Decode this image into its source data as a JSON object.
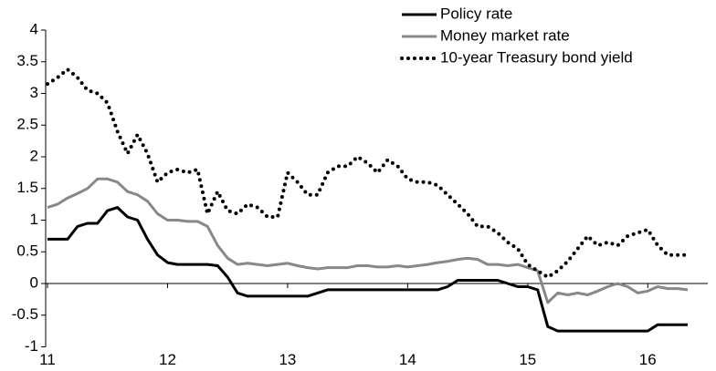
{
  "chart_data": {
    "type": "line",
    "x": [
      11,
      11.083,
      11.167,
      11.25,
      11.333,
      11.417,
      11.5,
      11.583,
      11.667,
      11.75,
      11.833,
      11.917,
      12,
      12.083,
      12.167,
      12.25,
      12.333,
      12.417,
      12.5,
      12.583,
      12.667,
      12.75,
      12.833,
      12.917,
      13,
      13.083,
      13.167,
      13.25,
      13.333,
      13.417,
      13.5,
      13.583,
      13.667,
      13.75,
      13.833,
      13.917,
      14,
      14.083,
      14.167,
      14.25,
      14.333,
      14.417,
      14.5,
      14.583,
      14.667,
      14.75,
      14.833,
      14.917,
      15,
      15.083,
      15.167,
      15.25,
      15.333,
      15.417,
      15.5,
      15.583,
      15.667,
      15.75,
      15.833,
      15.917,
      16,
      16.083,
      16.167,
      16.25,
      16.333
    ],
    "series": [
      {
        "name": "Policy rate",
        "color": "#000000",
        "linestyle": "solid",
        "values": [
          0.7,
          0.7,
          0.7,
          0.9,
          0.95,
          0.95,
          1.15,
          1.2,
          1.05,
          1.0,
          0.7,
          0.45,
          0.33,
          0.3,
          0.3,
          0.3,
          0.3,
          0.28,
          0.1,
          -0.15,
          -0.2,
          -0.2,
          -0.2,
          -0.2,
          -0.2,
          -0.2,
          -0.2,
          -0.15,
          -0.1,
          -0.1,
          -0.1,
          -0.1,
          -0.1,
          -0.1,
          -0.1,
          -0.1,
          -0.1,
          -0.1,
          -0.1,
          -0.1,
          -0.05,
          0.05,
          0.05,
          0.05,
          0.05,
          0.05,
          0,
          -0.05,
          -0.05,
          -0.1,
          -0.68,
          -0.75,
          -0.75,
          -0.75,
          -0.75,
          -0.75,
          -0.75,
          -0.75,
          -0.75,
          -0.75,
          -0.75,
          -0.65,
          -0.65,
          -0.65,
          -0.65
        ]
      },
      {
        "name": "Money market rate",
        "color": "#888888",
        "linestyle": "solid",
        "values": [
          1.2,
          1.25,
          1.35,
          1.42,
          1.5,
          1.65,
          1.65,
          1.6,
          1.45,
          1.4,
          1.3,
          1.1,
          1.0,
          1.0,
          0.98,
          0.98,
          0.9,
          0.6,
          0.4,
          0.3,
          0.32,
          0.3,
          0.28,
          0.3,
          0.32,
          0.28,
          0.25,
          0.23,
          0.25,
          0.25,
          0.25,
          0.28,
          0.28,
          0.26,
          0.26,
          0.28,
          0.26,
          0.28,
          0.3,
          0.33,
          0.35,
          0.38,
          0.4,
          0.38,
          0.3,
          0.3,
          0.28,
          0.3,
          0.25,
          0.2,
          -0.3,
          -0.15,
          -0.18,
          -0.15,
          -0.18,
          -0.12,
          -0.05,
          0,
          -0.05,
          -0.15,
          -0.12,
          -0.05,
          -0.08,
          -0.08,
          -0.1
        ]
      },
      {
        "name": "10-year Treasury bond yield",
        "color": "#000000",
        "linestyle": "dotted",
        "values": [
          3.15,
          3.25,
          3.38,
          3.25,
          3.05,
          3.0,
          2.85,
          2.4,
          2.05,
          2.35,
          2.05,
          1.6,
          1.75,
          1.8,
          1.75,
          1.8,
          1.1,
          1.45,
          1.15,
          1.1,
          1.25,
          1.2,
          1.05,
          1.05,
          1.75,
          1.6,
          1.4,
          1.4,
          1.75,
          1.85,
          1.85,
          2.0,
          1.9,
          1.75,
          1.95,
          1.85,
          1.65,
          1.6,
          1.6,
          1.55,
          1.4,
          1.25,
          1.1,
          0.9,
          0.9,
          0.8,
          0.65,
          0.55,
          0.3,
          0.2,
          0.1,
          0.2,
          0.35,
          0.55,
          0.75,
          0.6,
          0.65,
          0.6,
          0.75,
          0.8,
          0.85,
          0.6,
          0.45,
          0.45,
          0.45
        ]
      }
    ],
    "xlim": [
      11,
      16.5
    ],
    "xticks": [
      11,
      12,
      13,
      14,
      15,
      16
    ],
    "ylim": [
      -1,
      4
    ],
    "yticks": [
      -1,
      -0.5,
      0,
      0.5,
      1,
      1.5,
      2,
      2.5,
      3,
      3.5,
      4
    ],
    "legend": "upper right"
  }
}
